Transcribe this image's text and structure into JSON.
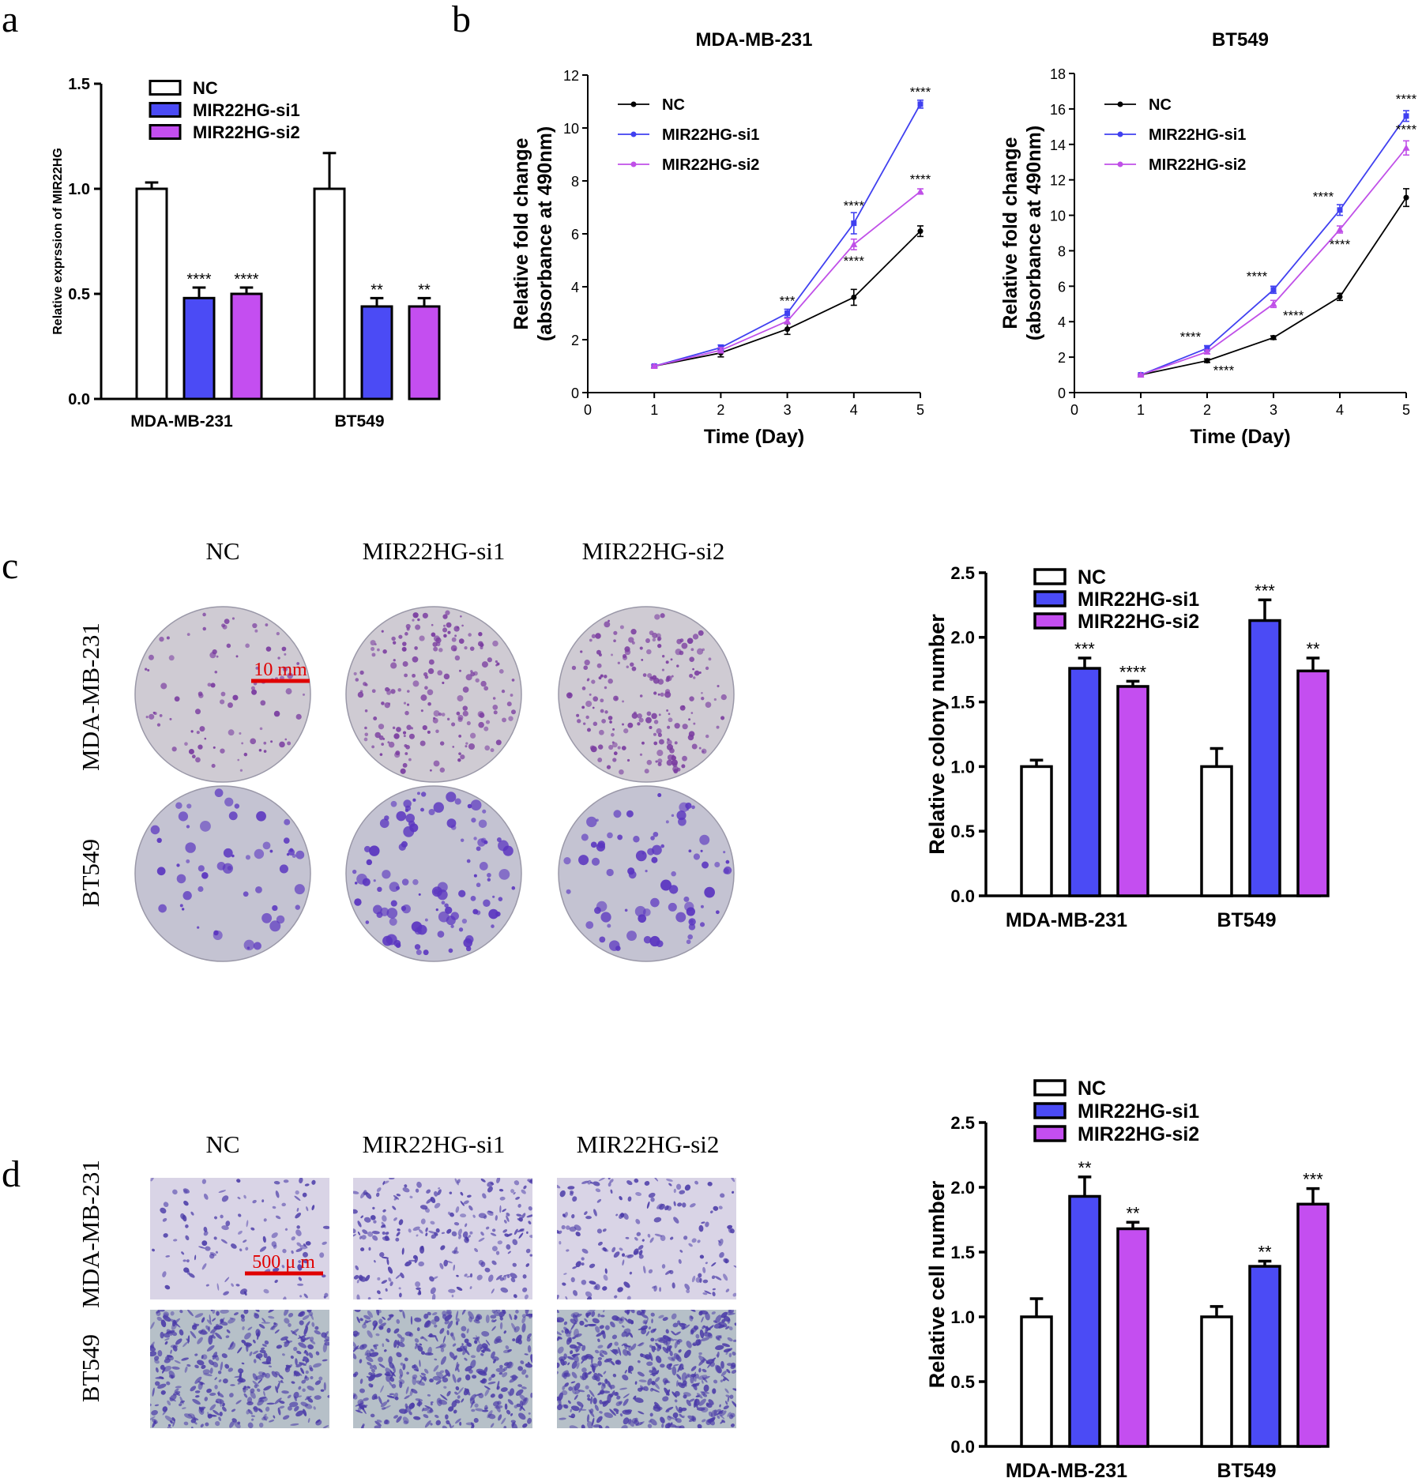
{
  "colors": {
    "nc": "#ffffff",
    "si1": "#4b4bf5",
    "si2": "#c44ef0",
    "axis": "#000000",
    "line_nc": "#000000",
    "line_si1": "#4040f0",
    "line_si2": "#c050e8",
    "scale": "#e00000",
    "dish": "#cfcbd3",
    "dish_dark": "#c4c3d2",
    "colony_a": "#7a3ca0",
    "colony_b": "#5a35c0",
    "well_a": "#d9d4e6",
    "well_b": "#b6c0c8",
    "cell": "#4a3aa8"
  },
  "panels": {
    "a": {
      "letter": "a"
    },
    "b": {
      "letter": "b"
    },
    "c": {
      "letter": "c",
      "col_labels": [
        "NC",
        "MIR22HG-si1",
        "MIR22HG-si2"
      ],
      "row_labels": [
        "MDA-MB-231",
        "BT549"
      ],
      "scale_label": "10 mm",
      "image_name": "colony-dish"
    },
    "d": {
      "letter": "d",
      "col_labels": [
        "NC",
        "MIR22HG-si1",
        "MIR22HG-si2"
      ],
      "row_labels": [
        "MDA-MB-231",
        "BT549"
      ],
      "scale_label": "500 μ m",
      "image_name": "transwell-image"
    }
  },
  "chart_data": [
    {
      "id": "a",
      "type": "bar",
      "title": "",
      "ylabel": "Relative exprssion of MIR22HG",
      "ylim": [
        0,
        1.5
      ],
      "yticks": [
        "0.0",
        "0.5",
        "1.0",
        "1.5"
      ],
      "ytick_values": [
        0,
        0.5,
        1.0,
        1.5
      ],
      "categories": [
        "MDA-MB-231",
        "BT549"
      ],
      "legend": [
        "NC",
        "MIR22HG-si1",
        "MIR22HG-si2"
      ],
      "series": [
        {
          "name": "NC",
          "values": [
            1.0,
            1.0
          ],
          "errors": [
            0.03,
            0.17
          ],
          "sig": [
            "",
            ""
          ]
        },
        {
          "name": "MIR22HG-si1",
          "values": [
            0.48,
            0.44
          ],
          "errors": [
            0.05,
            0.04
          ],
          "sig": [
            "****",
            "**"
          ]
        },
        {
          "name": "MIR22HG-si2",
          "values": [
            0.5,
            0.44
          ],
          "errors": [
            0.03,
            0.04
          ],
          "sig": [
            "****",
            "**"
          ]
        }
      ]
    },
    {
      "id": "b1",
      "type": "line",
      "title": "MDA-MB-231",
      "xlabel": "Time (Day)",
      "ylabel": [
        "Relative fold change",
        "(absorbance at 490nm)"
      ],
      "xlim": [
        0,
        5
      ],
      "ylim": [
        0,
        12
      ],
      "xticks": [
        "0",
        "1",
        "2",
        "3",
        "4",
        "5"
      ],
      "yticks": [
        "0",
        "2",
        "4",
        "6",
        "8",
        "10",
        "12"
      ],
      "ytick_values": [
        0,
        2,
        4,
        6,
        8,
        10,
        12
      ],
      "x": [
        1,
        2,
        3,
        4,
        5
      ],
      "legend": [
        "NC",
        "MIR22HG-si1",
        "MIR22HG-si2"
      ],
      "series": [
        {
          "name": "NC",
          "values": [
            1.0,
            1.5,
            2.4,
            3.6,
            6.1
          ],
          "errors": [
            0.05,
            0.15,
            0.2,
            0.3,
            0.2
          ]
        },
        {
          "name": "MIR22HG-si1",
          "values": [
            1.0,
            1.7,
            3.0,
            6.4,
            10.9
          ],
          "errors": [
            0.05,
            0.1,
            0.15,
            0.4,
            0.15
          ]
        },
        {
          "name": "MIR22HG-si2",
          "values": [
            1.0,
            1.6,
            2.7,
            5.6,
            7.6
          ],
          "errors": [
            0.05,
            0.1,
            0.1,
            0.2,
            0.1
          ]
        }
      ],
      "annotations": [
        {
          "x": 3,
          "y": 3.3,
          "text": "***"
        },
        {
          "x": 4,
          "y": 6.9,
          "text": "****"
        },
        {
          "x": 4,
          "y": 4.8,
          "text": "****"
        },
        {
          "x": 5,
          "y": 11.2,
          "text": "****"
        },
        {
          "x": 5,
          "y": 7.9,
          "text": "****"
        }
      ]
    },
    {
      "id": "b2",
      "type": "line",
      "title": "BT549",
      "xlabel": "Time (Day)",
      "ylabel": [
        "Relative fold change",
        "(absorbance at 490nm)"
      ],
      "xlim": [
        0,
        5
      ],
      "ylim": [
        0,
        18
      ],
      "xticks": [
        "0",
        "1",
        "2",
        "3",
        "4",
        "5"
      ],
      "yticks": [
        "0",
        "2",
        "4",
        "6",
        "8",
        "10",
        "12",
        "14",
        "16",
        "18"
      ],
      "ytick_values": [
        0,
        2,
        4,
        6,
        8,
        10,
        12,
        14,
        16,
        18
      ],
      "x": [
        1,
        2,
        3,
        4,
        5
      ],
      "legend": [
        "NC",
        "MIR22HG-si1",
        "MIR22HG-si2"
      ],
      "series": [
        {
          "name": "NC",
          "values": [
            1.0,
            1.8,
            3.1,
            5.4,
            11.0
          ],
          "errors": [
            0.05,
            0.1,
            0.1,
            0.2,
            0.5
          ]
        },
        {
          "name": "MIR22HG-si1",
          "values": [
            1.0,
            2.5,
            5.8,
            10.3,
            15.6
          ],
          "errors": [
            0.05,
            0.15,
            0.2,
            0.3,
            0.3
          ]
        },
        {
          "name": "MIR22HG-si2",
          "values": [
            1.0,
            2.3,
            5.0,
            9.2,
            13.8
          ],
          "errors": [
            0.05,
            0.1,
            0.2,
            0.2,
            0.4
          ]
        }
      ],
      "annotations": [
        {
          "x": 1.75,
          "y": 2.9,
          "text": "****"
        },
        {
          "x": 2.25,
          "y": 1.0,
          "text": "****"
        },
        {
          "x": 2.75,
          "y": 6.3,
          "text": "****"
        },
        {
          "x": 3.3,
          "y": 4.1,
          "text": "****"
        },
        {
          "x": 3.75,
          "y": 10.8,
          "text": "****"
        },
        {
          "x": 4,
          "y": 8.1,
          "text": "****"
        },
        {
          "x": 5,
          "y": 16.3,
          "text": "****"
        },
        {
          "x": 5,
          "y": 14.6,
          "text": "****"
        }
      ]
    },
    {
      "id": "c",
      "type": "bar",
      "title": "",
      "ylabel": "Relative colony number",
      "ylim": [
        0,
        2.5
      ],
      "yticks": [
        "0.0",
        "0.5",
        "1.0",
        "1.5",
        "2.0",
        "2.5"
      ],
      "ytick_values": [
        0,
        0.5,
        1.0,
        1.5,
        2.0,
        2.5
      ],
      "categories": [
        "MDA-MB-231",
        "BT549"
      ],
      "legend": [
        "NC",
        "MIR22HG-si1",
        "MIR22HG-si2"
      ],
      "series": [
        {
          "name": "NC",
          "values": [
            1.0,
            1.0
          ],
          "errors": [
            0.05,
            0.14
          ],
          "sig": [
            "",
            ""
          ]
        },
        {
          "name": "MIR22HG-si1",
          "values": [
            1.76,
            2.13
          ],
          "errors": [
            0.08,
            0.16
          ],
          "sig": [
            "***",
            "***"
          ]
        },
        {
          "name": "MIR22HG-si2",
          "values": [
            1.62,
            1.74
          ],
          "errors": [
            0.04,
            0.1
          ],
          "sig": [
            "****",
            "**"
          ]
        }
      ]
    },
    {
      "id": "d",
      "type": "bar",
      "title": "",
      "ylabel": "Relative cell number",
      "ylim": [
        0,
        2.5
      ],
      "yticks": [
        "0.0",
        "0.5",
        "1.0",
        "1.5",
        "2.0",
        "2.5"
      ],
      "ytick_values": [
        0,
        0.5,
        1.0,
        1.5,
        2.0,
        2.5
      ],
      "categories": [
        "MDA-MB-231",
        "BT549"
      ],
      "legend": [
        "NC",
        "MIR22HG-si1",
        "MIR22HG-si2"
      ],
      "series": [
        {
          "name": "NC",
          "values": [
            1.0,
            1.0
          ],
          "errors": [
            0.14,
            0.08
          ],
          "sig": [
            "",
            ""
          ]
        },
        {
          "name": "MIR22HG-si1",
          "values": [
            1.93,
            1.39
          ],
          "errors": [
            0.15,
            0.04
          ],
          "sig": [
            "**",
            "**"
          ]
        },
        {
          "name": "MIR22HG-si2",
          "values": [
            1.68,
            1.87
          ],
          "errors": [
            0.05,
            0.12
          ],
          "sig": [
            "**",
            "***"
          ]
        }
      ]
    }
  ]
}
